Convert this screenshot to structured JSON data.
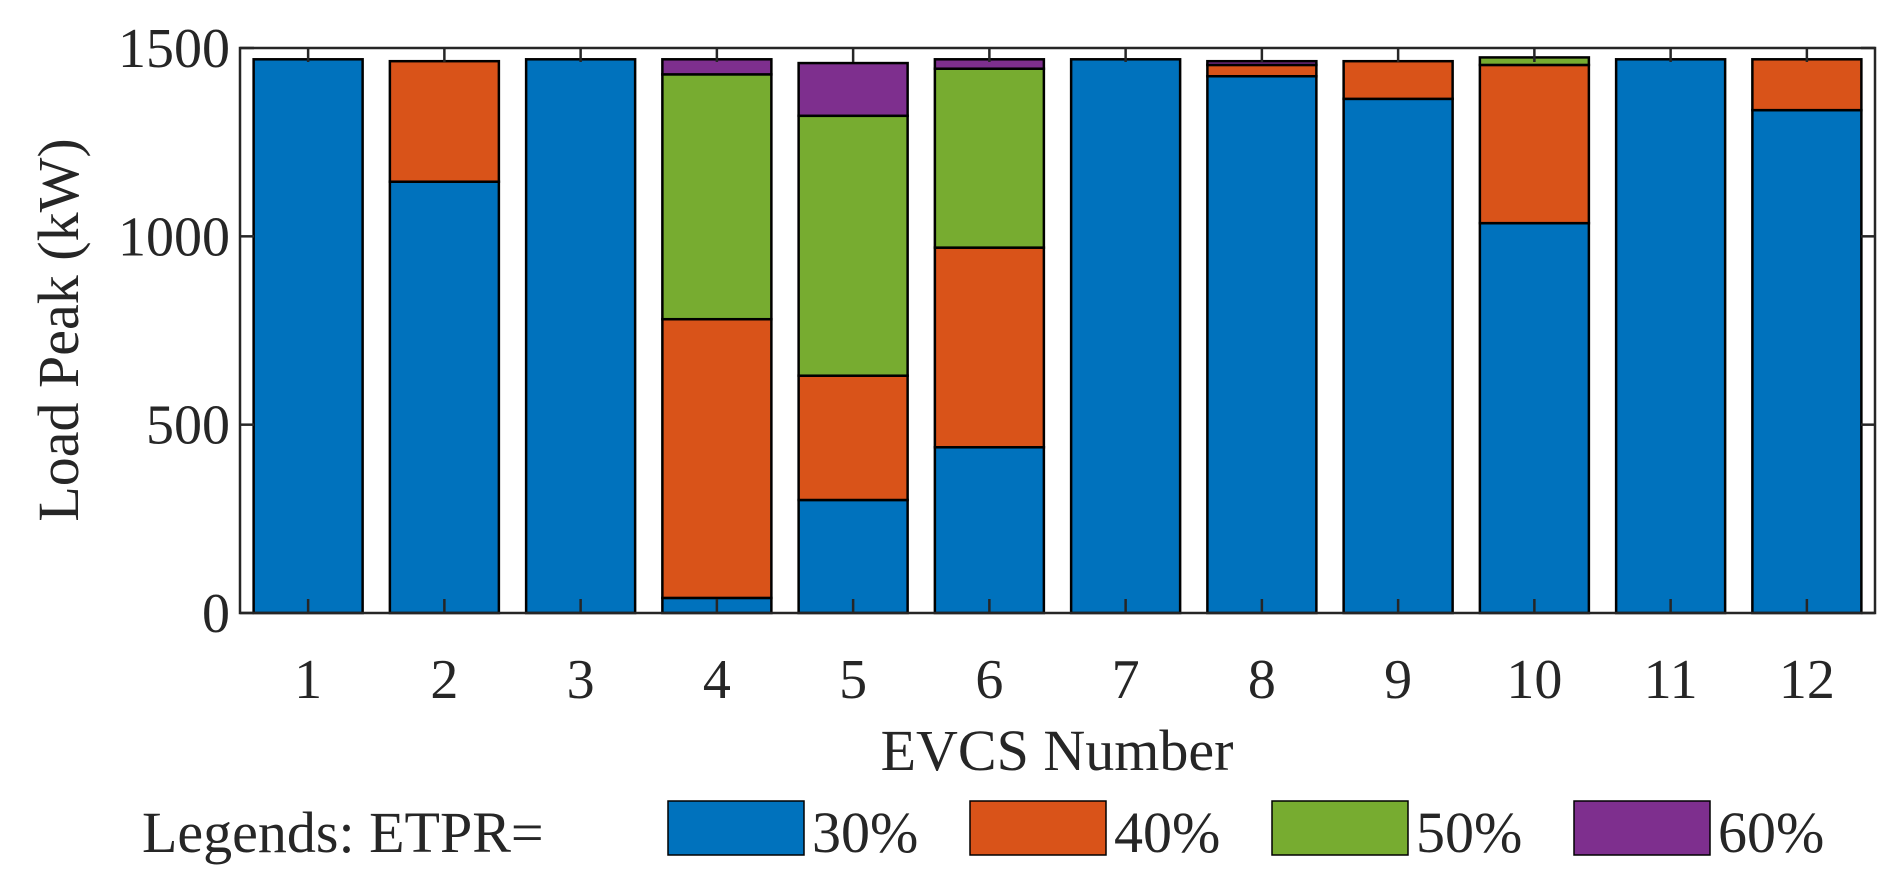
{
  "chart_data": {
    "type": "bar",
    "stacked": true,
    "title": "",
    "xlabel": "EVCS Number",
    "ylabel": "Load Peak (kW)",
    "ylim": [
      0,
      1500
    ],
    "yticks": [
      0,
      500,
      1000,
      1500
    ],
    "categories": [
      "1",
      "2",
      "3",
      "4",
      "5",
      "6",
      "7",
      "8",
      "9",
      "10",
      "11",
      "12"
    ],
    "legend_prefix": "Legends: ETPR=",
    "legend_position": "bottom",
    "series": [
      {
        "name": "30%",
        "color": "#0072BD",
        "values": [
          1470,
          1145,
          1470,
          40,
          300,
          440,
          1470,
          1425,
          1365,
          1035,
          1470,
          1335
        ]
      },
      {
        "name": "40%",
        "color": "#D95319",
        "values": [
          0,
          320,
          0,
          740,
          330,
          530,
          0,
          30,
          100,
          420,
          0,
          135
        ]
      },
      {
        "name": "50%",
        "color": "#77AC30",
        "values": [
          0,
          0,
          0,
          650,
          690,
          475,
          0,
          0,
          0,
          20,
          0,
          0
        ]
      },
      {
        "name": "60%",
        "color": "#7E2F8E",
        "values": [
          0,
          0,
          0,
          40,
          140,
          25,
          0,
          10,
          0,
          0,
          0,
          0
        ]
      }
    ]
  }
}
